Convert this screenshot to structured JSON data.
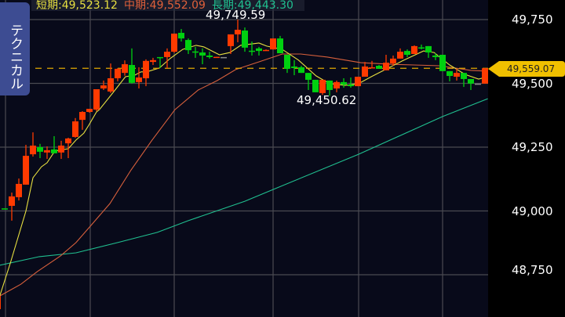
{
  "tab_label": "テクニカル",
  "legend": {
    "short": {
      "label": "短期:49,523.12",
      "color": "#e8e040"
    },
    "mid": {
      "label": "中期:49,552.09",
      "color": "#e0603a"
    },
    "long": {
      "label": "長期:49,443.30",
      "color": "#20c090"
    }
  },
  "chart_data": {
    "type": "candlestick",
    "ylim": [
      48600,
      49800
    ],
    "yticks": [
      {
        "value": 49750,
        "label": "49,750"
      },
      {
        "value": 49500,
        "label": "49,500"
      },
      {
        "value": 49250,
        "label": "49,250"
      },
      {
        "value": 49000,
        "label": "49,000"
      },
      {
        "value": 48750,
        "label": "48,750"
      }
    ],
    "grid": true,
    "up_color": "#ff3a00",
    "down_color": "#00d010",
    "flat_color": "#8a8a8a",
    "current_price": {
      "value": 49559.07,
      "label": "49,559.07",
      "color": "#f0c000"
    },
    "high_label": {
      "index": 34,
      "value": 49749.59,
      "label": "49,749.59"
    },
    "low_label": {
      "index": 47,
      "value": 49450.62,
      "label": "49,450.62"
    },
    "candles": [
      [
        48615,
        48670,
        48600,
        48667
      ],
      [
        49010,
        49010,
        49008,
        49008
      ],
      [
        49020,
        49072,
        48962,
        49057
      ],
      [
        49054,
        49127,
        49041,
        49106
      ],
      [
        49103,
        49259,
        49103,
        49216
      ],
      [
        49222,
        49308,
        49213,
        49256
      ],
      [
        49250,
        49263,
        49207,
        49232
      ],
      [
        49229,
        49253,
        49204,
        49238
      ],
      [
        49241,
        49293,
        49226,
        49226
      ],
      [
        49229,
        49275,
        49204,
        49256
      ],
      [
        49265,
        49287,
        49207,
        49284
      ],
      [
        49290,
        49364,
        49287,
        49351
      ],
      [
        49357,
        49391,
        49318,
        49388
      ],
      [
        49388,
        49400,
        49385,
        49400
      ],
      [
        49397,
        49477,
        49391,
        49477
      ],
      [
        49480,
        49511,
        49474,
        49492
      ],
      [
        49468,
        49578,
        49462,
        49520
      ],
      [
        49520,
        49560,
        49508,
        49557
      ],
      [
        49541,
        49590,
        49530,
        49575
      ],
      [
        49572,
        49637,
        49499,
        49502
      ],
      [
        49505,
        49563,
        49480,
        49523
      ],
      [
        49520,
        49594,
        49489,
        49588
      ],
      [
        49584,
        49600,
        49572,
        49591
      ],
      [
        49603,
        49603,
        49560,
        49601
      ],
      [
        49603,
        49637,
        49560,
        49624
      ],
      [
        49624,
        49695,
        49620,
        49695
      ],
      [
        49698,
        49713,
        49664,
        49676
      ],
      [
        49670,
        49676,
        49615,
        49630
      ],
      [
        49625,
        49643,
        49600,
        49623
      ],
      [
        49621,
        49637,
        49575,
        49609
      ],
      [
        49609,
        49624,
        49597,
        49603
      ],
      [
        49602,
        49604,
        49602,
        49604
      ],
      [
        49603,
        49603,
        49603,
        49603
      ],
      [
        49646,
        49692,
        49615,
        49692
      ],
      [
        49692,
        49749.59,
        49661,
        49710
      ],
      [
        49707,
        49719,
        49624,
        49640
      ],
      [
        49628,
        49664,
        49609,
        49626
      ],
      [
        49637,
        49643,
        49609,
        49627
      ],
      [
        49629,
        49633,
        49629,
        49631
      ],
      [
        49633,
        49676,
        49633,
        49676
      ],
      [
        49676,
        49686,
        49618,
        49618
      ],
      [
        49612,
        49612,
        49541,
        49557
      ],
      [
        49566,
        49591,
        49532,
        49560
      ],
      [
        49563,
        49569,
        49541,
        49541
      ],
      [
        49541,
        49541,
        49474,
        49514
      ],
      [
        49514,
        49514,
        49465,
        49465
      ],
      [
        49462,
        49514,
        49455,
        49514
      ],
      [
        49511,
        49511,
        49450.62,
        49474
      ],
      [
        49480,
        49511,
        49465,
        49505
      ],
      [
        49505,
        49520,
        49483,
        49495
      ],
      [
        49495,
        49523,
        49483,
        49489
      ],
      [
        49489,
        49526,
        49489,
        49526
      ],
      [
        49526,
        49584,
        49526,
        49566
      ],
      [
        49560,
        49588,
        49560,
        49563
      ],
      [
        49569,
        49572,
        49557,
        49557
      ],
      [
        49551,
        49612,
        49551,
        49581
      ],
      [
        49578,
        49609,
        49569,
        49597
      ],
      [
        49597,
        49637,
        49597,
        49624
      ],
      [
        49627,
        49633,
        49603,
        49612
      ],
      [
        49615,
        49649,
        49615,
        49646
      ],
      [
        49641,
        49652,
        49633,
        49640
      ],
      [
        49646,
        49646,
        49600,
        49621
      ],
      [
        49609,
        49618,
        49591,
        49603
      ],
      [
        49612,
        49612,
        49548,
        49548
      ],
      [
        49548,
        49548,
        49508,
        49529
      ],
      [
        49526,
        49557,
        49511,
        49541
      ],
      [
        49541,
        49541,
        49486,
        49517
      ],
      [
        49517,
        49517,
        49474,
        49499
      ],
      [
        49499,
        49499,
        49499,
        49499
      ],
      [
        49499,
        49560,
        49499,
        49559.07
      ]
    ],
    "moving_averages": [
      {
        "name": "短期",
        "color": "#e8e040",
        "points": [
          [
            0.3,
            48667
          ],
          [
            1.8,
            48796
          ],
          [
            4,
            48999
          ],
          [
            5,
            49130
          ],
          [
            6.2,
            49173
          ],
          [
            7,
            49189
          ],
          [
            8.1,
            49235
          ],
          [
            10,
            49244
          ],
          [
            11.1,
            49278
          ],
          [
            12.2,
            49305
          ],
          [
            12.9,
            49336
          ],
          [
            14,
            49388
          ],
          [
            14.4,
            49397
          ],
          [
            16.2,
            49459
          ],
          [
            18.1,
            49526
          ],
          [
            19.4,
            49532
          ],
          [
            20.3,
            49545
          ],
          [
            21.1,
            49545
          ],
          [
            22.9,
            49560
          ],
          [
            24.4,
            49597
          ],
          [
            26.2,
            49633
          ],
          [
            28.1,
            49649
          ],
          [
            29.2,
            49643
          ],
          [
            31.4,
            49612
          ],
          [
            32.9,
            49621
          ],
          [
            34.4,
            49649
          ],
          [
            37,
            49658
          ],
          [
            38.1,
            49646
          ],
          [
            40.3,
            49633
          ],
          [
            42.6,
            49591
          ],
          [
            45.1,
            49529
          ],
          [
            47,
            49499
          ],
          [
            49.2,
            49492
          ],
          [
            51.1,
            49499
          ],
          [
            52.9,
            49526
          ],
          [
            55.1,
            49557
          ],
          [
            57.3,
            49588
          ],
          [
            60.3,
            49627
          ],
          [
            61.8,
            49621
          ],
          [
            64,
            49572
          ],
          [
            66.2,
            49535
          ],
          [
            68.1,
            49517
          ],
          [
            69.4,
            49526
          ]
        ]
      },
      {
        "name": "中期",
        "color": "#d8603c",
        "points": [
          [
            0.3,
            48667
          ],
          [
            3.3,
            48713
          ],
          [
            5.6,
            48762
          ],
          [
            8.9,
            48824
          ],
          [
            11.1,
            48876
          ],
          [
            13.3,
            48946
          ],
          [
            15.9,
            49029
          ],
          [
            18.9,
            49161
          ],
          [
            21.8,
            49275
          ],
          [
            25.1,
            49397
          ],
          [
            28.4,
            49474
          ],
          [
            31.1,
            49511
          ],
          [
            33.7,
            49554
          ],
          [
            37.3,
            49587
          ],
          [
            40.3,
            49615
          ],
          [
            42.9,
            49615
          ],
          [
            46.7,
            49603
          ],
          [
            51.4,
            49581
          ],
          [
            55.6,
            49575
          ],
          [
            58.9,
            49572
          ],
          [
            62.6,
            49569
          ],
          [
            67,
            49551
          ],
          [
            69.4,
            49548
          ]
        ]
      },
      {
        "name": "長期",
        "color": "#20c090",
        "points": [
          [
            0.3,
            48787
          ],
          [
            5.9,
            48821
          ],
          [
            11.1,
            48836
          ],
          [
            17,
            48876
          ],
          [
            22.6,
            48916
          ],
          [
            27,
            48962
          ],
          [
            35,
            49038
          ],
          [
            39,
            49084
          ],
          [
            51.1,
            49222
          ],
          [
            63,
            49370
          ],
          [
            69.4,
            49440
          ]
        ]
      }
    ]
  }
}
